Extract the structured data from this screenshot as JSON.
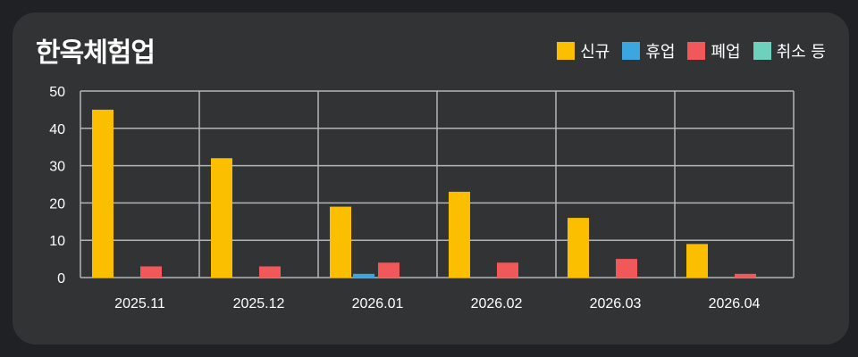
{
  "title": "한옥체험업",
  "legend": [
    {
      "label": "신규",
      "color": "#fbbf00"
    },
    {
      "label": "휴업",
      "color": "#3ca6e0"
    },
    {
      "label": "폐업",
      "color": "#f0585a"
    },
    {
      "label": "취소 등",
      "color": "#6dd1bd"
    }
  ],
  "chart_data": {
    "type": "bar",
    "title": "한옥체험업",
    "categories": [
      "2025.11",
      "2025.12",
      "2026.01",
      "2026.02",
      "2026.03",
      "2026.04"
    ],
    "series": [
      {
        "name": "신규",
        "color": "#fbbf00",
        "values": [
          45,
          32,
          19,
          23,
          16,
          9
        ]
      },
      {
        "name": "휴업",
        "color": "#3ca6e0",
        "values": [
          0,
          0,
          1,
          0,
          0,
          0
        ]
      },
      {
        "name": "폐업",
        "color": "#f0585a",
        "values": [
          3,
          3,
          4,
          4,
          5,
          1
        ]
      },
      {
        "name": "취소 등",
        "color": "#6dd1bd",
        "values": [
          0,
          0,
          0,
          0,
          0,
          0
        ]
      }
    ],
    "ylim": [
      0,
      50
    ],
    "yticks": [
      0,
      10,
      20,
      30,
      40,
      50
    ],
    "grid": true,
    "legend_position": "top-right",
    "xlabel": "",
    "ylabel": ""
  }
}
